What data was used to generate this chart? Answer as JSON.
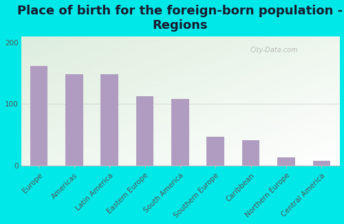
{
  "title": "Place of birth for the foreign-born population -\nRegions",
  "categories": [
    "Europe",
    "Americas",
    "Latin America",
    "Eastern Europe",
    "South America",
    "Southern Europe",
    "Caribbean",
    "Northern Europe",
    "Central America"
  ],
  "values": [
    162,
    148,
    149,
    113,
    108,
    47,
    41,
    13,
    8
  ],
  "bar_color": "#b09cc0",
  "background_outer": "#00e8e8",
  "background_inner_topleft": "#ddeedd",
  "background_inner_bottomright": "#f8f8f4",
  "ylim": [
    0,
    210
  ],
  "yticks": [
    0,
    100,
    200
  ],
  "title_fontsize": 13,
  "tick_fontsize": 7.5,
  "watermark": "City-Data.com"
}
